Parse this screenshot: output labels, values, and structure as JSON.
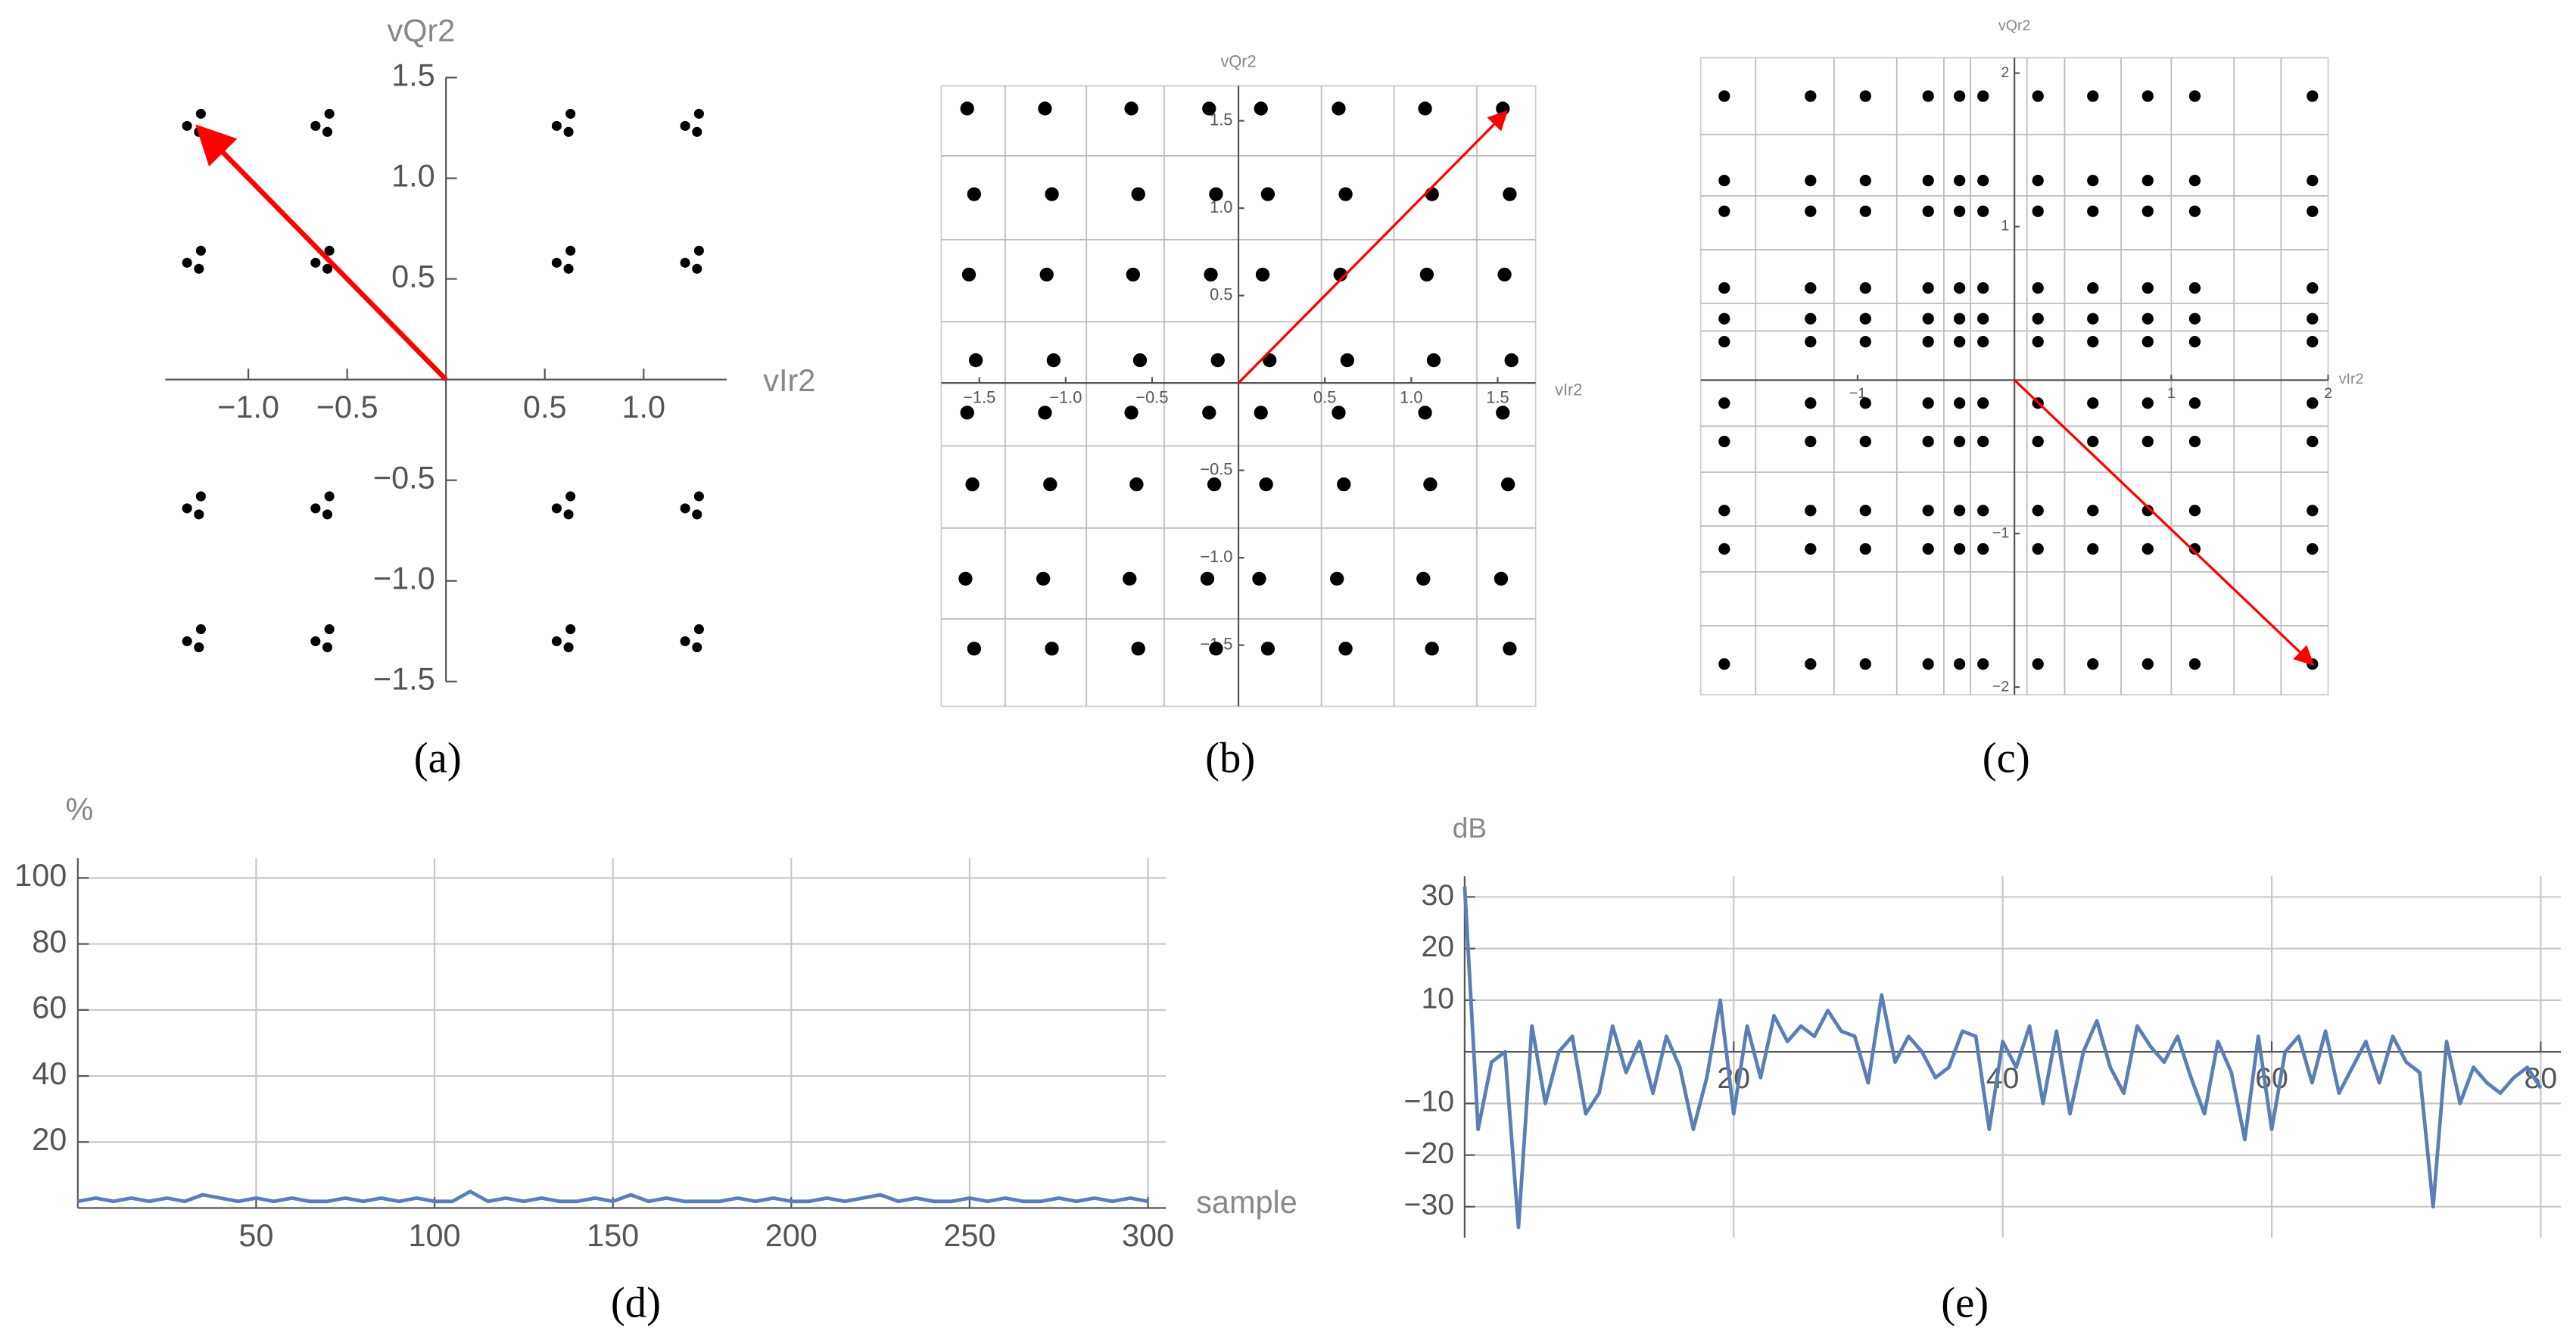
{
  "chart_data": [
    {
      "type": "scatter",
      "caption": "(a)",
      "xlabel": "vIr2",
      "ylabel": "vQr2",
      "color": "#000000",
      "xlim": [
        -1.42,
        1.42
      ],
      "ylim": [
        -1.5,
        1.5
      ],
      "xticks": [
        {
          "value": -1,
          "label": "−1.0"
        },
        {
          "value": -0.5,
          "label": "−0.5"
        },
        0.5,
        {
          "value": 1,
          "label": "1.0"
        }
      ],
      "yticks": [
        {
          "value": -1.5,
          "label": "−1.5"
        },
        {
          "value": -1,
          "label": "−1.0"
        },
        {
          "value": -0.5,
          "label": "−0.5"
        },
        0.5,
        {
          "value": 1,
          "label": "1.0"
        },
        1.5
      ],
      "grid": false,
      "x": [
        -1.24,
        -1.31,
        -1.25,
        -1.24,
        -1.31,
        -1.25,
        -1.24,
        -1.31,
        -1.25,
        -1.24,
        -1.31,
        -1.25,
        -0.59,
        -0.66,
        -0.6,
        -0.59,
        -0.66,
        -0.6,
        -0.59,
        -0.66,
        -0.6,
        -0.59,
        -0.66,
        -0.6,
        0.63,
        0.56,
        0.62,
        0.63,
        0.56,
        0.62,
        0.63,
        0.56,
        0.62,
        0.63,
        0.56,
        0.62,
        1.28,
        1.21,
        1.27,
        1.28,
        1.21,
        1.27,
        1.28,
        1.21,
        1.27,
        1.28,
        1.21,
        1.27
      ],
      "y": [
        1.32,
        1.26,
        1.23,
        0.64,
        0.58,
        0.55,
        -0.58,
        -0.64,
        -0.67,
        -1.24,
        -1.3,
        -1.33,
        1.32,
        1.26,
        1.23,
        0.64,
        0.58,
        0.55,
        -0.58,
        -0.64,
        -0.67,
        -1.24,
        -1.3,
        -1.33,
        1.32,
        1.26,
        1.23,
        0.64,
        0.58,
        0.55,
        -0.58,
        -0.64,
        -0.67,
        -1.24,
        -1.3,
        -1.33,
        1.32,
        1.26,
        1.23,
        0.64,
        0.58,
        0.55,
        -0.58,
        -0.64,
        -0.67,
        -1.24,
        -1.3,
        -1.33
      ],
      "arrow": {
        "x": [
          0,
          -1.25
        ],
        "y": [
          0,
          1.25
        ],
        "color": "#ff0000"
      }
    },
    {
      "type": "scatter",
      "caption": "(b)",
      "xlabel": "vIr2",
      "ylabel": "vQr2",
      "color": "#000000",
      "xlim": [
        -1.72,
        1.72
      ],
      "ylim": [
        -1.85,
        1.7
      ],
      "xticks": [
        {
          "value": -1.5,
          "label": "−1.5"
        },
        {
          "value": -1,
          "label": "−1.0"
        },
        {
          "value": -0.5,
          "label": "−0.5"
        },
        0.5,
        {
          "value": 1,
          "label": "1.0"
        },
        1.5
      ],
      "yticks": [
        {
          "value": -1.5,
          "label": "−1.5"
        },
        {
          "value": -1,
          "label": "−1.0"
        },
        {
          "value": -0.5,
          "label": "−0.5"
        },
        0.5,
        {
          "value": 1,
          "label": "1.0"
        },
        1.5
      ],
      "grid_x": [
        -1.35,
        -0.88,
        -0.43,
        0.48,
        0.9,
        1.38
      ],
      "grid_y": [
        -1.35,
        -0.83,
        -0.36,
        0.35,
        0.82,
        1.3
      ],
      "x": [
        -1.53,
        -1.58,
        -1.54,
        -1.57,
        -1.52,
        -1.56,
        -1.53,
        -1.57,
        -1.08,
        -1.13,
        -1.09,
        -1.12,
        -1.07,
        -1.11,
        -1.08,
        -1.12,
        -0.58,
        -0.63,
        -0.59,
        -0.62,
        -0.57,
        -0.61,
        -0.58,
        -0.62,
        -0.13,
        -0.18,
        -0.14,
        -0.17,
        -0.12,
        -0.16,
        -0.13,
        -0.17,
        0.17,
        0.12,
        0.16,
        0.13,
        0.18,
        0.14,
        0.17,
        0.13,
        0.62,
        0.57,
        0.61,
        0.58,
        0.63,
        0.59,
        0.62,
        0.58,
        1.12,
        1.07,
        1.11,
        1.08,
        1.13,
        1.09,
        1.12,
        1.08,
        1.57,
        1.52,
        1.56,
        1.53,
        1.58,
        1.54,
        1.57,
        1.53
      ],
      "y": [
        -1.52,
        -1.12,
        -0.58,
        -0.17,
        0.13,
        0.62,
        1.08,
        1.57,
        -1.52,
        -1.12,
        -0.58,
        -0.17,
        0.13,
        0.62,
        1.08,
        1.57,
        -1.52,
        -1.12,
        -0.58,
        -0.17,
        0.13,
        0.62,
        1.08,
        1.57,
        -1.52,
        -1.12,
        -0.58,
        -0.17,
        0.13,
        0.62,
        1.08,
        1.57,
        -1.52,
        -1.12,
        -0.58,
        -0.17,
        0.13,
        0.62,
        1.08,
        1.57,
        -1.52,
        -1.12,
        -0.58,
        -0.17,
        0.13,
        0.62,
        1.08,
        1.57,
        -1.52,
        -1.12,
        -0.58,
        -0.17,
        0.13,
        0.62,
        1.08,
        1.57,
        -1.52,
        -1.12,
        -0.58,
        -0.17,
        0.13,
        0.62,
        1.08,
        1.57
      ],
      "arrow": {
        "x": [
          0,
          1.55
        ],
        "y": [
          0,
          1.55
        ],
        "color": "#ff0000"
      }
    },
    {
      "type": "scatter",
      "caption": "(c)",
      "xlabel": "vIr2",
      "ylabel": "vQr2",
      "color": "#000000",
      "xlim": [
        -2,
        2
      ],
      "ylim": [
        -2.05,
        2.1
      ],
      "xticks": [
        {
          "value": -1,
          "label": "−1"
        },
        1,
        2
      ],
      "yticks": [
        {
          "value": -2,
          "label": "−2"
        },
        {
          "value": -1,
          "label": "−1"
        },
        1,
        2
      ],
      "grid_x": [
        -1.65,
        -1.15,
        -0.75,
        -0.45,
        -0.28,
        0.08,
        0.32,
        0.68,
        1.0,
        1.4,
        1.7
      ],
      "grid_y": [
        -1.6,
        -1.25,
        -0.95,
        -0.6,
        -0.3,
        0.32,
        0.5,
        0.85,
        1.2,
        1.6
      ],
      "x": [
        -1.85,
        -1.85,
        -1.85,
        -1.85,
        -1.85,
        -1.85,
        -1.85,
        -1.85,
        -1.85,
        -1.85,
        -1.85,
        -1.3,
        -1.3,
        -1.3,
        -1.3,
        -1.3,
        -1.3,
        -1.3,
        -1.3,
        -1.3,
        -1.3,
        -1.3,
        -0.95,
        -0.95,
        -0.95,
        -0.95,
        -0.95,
        -0.95,
        -0.95,
        -0.95,
        -0.95,
        -0.95,
        -0.95,
        -0.55,
        -0.55,
        -0.55,
        -0.55,
        -0.55,
        -0.55,
        -0.55,
        -0.55,
        -0.55,
        -0.55,
        -0.55,
        -0.35,
        -0.35,
        -0.35,
        -0.35,
        -0.35,
        -0.35,
        -0.35,
        -0.35,
        -0.35,
        -0.35,
        -0.35,
        -0.2,
        -0.2,
        -0.2,
        -0.2,
        -0.2,
        -0.2,
        -0.2,
        -0.2,
        -0.2,
        -0.2,
        -0.2,
        0.15,
        0.15,
        0.15,
        0.15,
        0.15,
        0.15,
        0.15,
        0.15,
        0.15,
        0.15,
        0.15,
        0.5,
        0.5,
        0.5,
        0.5,
        0.5,
        0.5,
        0.5,
        0.5,
        0.5,
        0.5,
        0.5,
        0.85,
        0.85,
        0.85,
        0.85,
        0.85,
        0.85,
        0.85,
        0.85,
        0.85,
        0.85,
        0.85,
        1.15,
        1.15,
        1.15,
        1.15,
        1.15,
        1.15,
        1.15,
        1.15,
        1.15,
        1.15,
        1.15,
        1.9,
        1.9,
        1.9,
        1.9,
        1.9,
        1.9,
        1.9,
        1.9,
        1.9,
        1.9,
        1.9
      ],
      "y": [
        1.85,
        1.3,
        1.1,
        0.6,
        0.4,
        0.25,
        -0.15,
        -0.4,
        -0.85,
        -1.1,
        -1.85,
        1.85,
        1.3,
        1.1,
        0.6,
        0.4,
        0.25,
        -0.15,
        -0.4,
        -0.85,
        -1.1,
        -1.85,
        1.85,
        1.3,
        1.1,
        0.6,
        0.4,
        0.25,
        -0.15,
        -0.4,
        -0.85,
        -1.1,
        -1.85,
        1.85,
        1.3,
        1.1,
        0.6,
        0.4,
        0.25,
        -0.15,
        -0.4,
        -0.85,
        -1.1,
        -1.85,
        1.85,
        1.3,
        1.1,
        0.6,
        0.4,
        0.25,
        -0.15,
        -0.4,
        -0.85,
        -1.1,
        -1.85,
        1.85,
        1.3,
        1.1,
        0.6,
        0.4,
        0.25,
        -0.15,
        -0.4,
        -0.85,
        -1.1,
        -1.85,
        1.85,
        1.3,
        1.1,
        0.6,
        0.4,
        0.25,
        -0.15,
        -0.4,
        -0.85,
        -1.1,
        -1.85,
        1.85,
        1.3,
        1.1,
        0.6,
        0.4,
        0.25,
        -0.15,
        -0.4,
        -0.85,
        -1.1,
        -1.85,
        1.85,
        1.3,
        1.1,
        0.6,
        0.4,
        0.25,
        -0.15,
        -0.4,
        -0.85,
        -1.1,
        -1.85,
        1.85,
        1.3,
        1.1,
        0.6,
        0.4,
        0.25,
        -0.15,
        -0.4,
        -0.85,
        -1.1,
        -1.85,
        1.85,
        1.3,
        1.1,
        0.6,
        0.4,
        0.25,
        -0.15,
        -0.4,
        -0.85,
        -1.1,
        -1.85
      ],
      "arrow": {
        "x": [
          0,
          1.9
        ],
        "y": [
          0,
          -1.85
        ],
        "color": "#ff0000"
      }
    },
    {
      "type": "line",
      "caption": "(d)",
      "xlabel": "sample",
      "ylabel": "%",
      "color": "#5b7fb5",
      "xlim": [
        0,
        305
      ],
      "ylim": [
        0,
        106
      ],
      "xticks": [
        50,
        100,
        150,
        200,
        250,
        300
      ],
      "yticks": [
        20,
        40,
        60,
        80,
        100
      ],
      "grid": true,
      "x": [
        0,
        5,
        10,
        15,
        20,
        25,
        30,
        35,
        40,
        45,
        50,
        55,
        60,
        65,
        70,
        75,
        80,
        85,
        90,
        95,
        100,
        105,
        110,
        115,
        120,
        125,
        130,
        135,
        140,
        145,
        150,
        155,
        160,
        165,
        170,
        175,
        180,
        185,
        190,
        195,
        200,
        205,
        210,
        215,
        220,
        225,
        230,
        235,
        240,
        245,
        250,
        255,
        260,
        265,
        270,
        275,
        280,
        285,
        290,
        295,
        300
      ],
      "values": [
        2,
        3,
        2,
        3,
        2,
        3,
        2,
        4,
        3,
        2,
        3,
        2,
        3,
        2,
        2,
        3,
        2,
        3,
        2,
        3,
        2,
        2,
        5,
        2,
        3,
        2,
        3,
        2,
        2,
        3,
        2,
        4,
        2,
        3,
        2,
        2,
        2,
        3,
        2,
        3,
        2,
        2,
        3,
        2,
        3,
        4,
        2,
        3,
        2,
        2,
        3,
        2,
        3,
        2,
        2,
        3,
        2,
        3,
        2,
        3,
        2
      ]
    },
    {
      "type": "line",
      "caption": "(e)",
      "ylabel": "dB",
      "color": "#5b7fb5",
      "xlim": [
        0,
        81.5
      ],
      "ylim": [
        -36,
        34
      ],
      "xticks": [
        20,
        40,
        60,
        80
      ],
      "yticks": [
        {
          "value": -30,
          "label": "−30"
        },
        {
          "value": -20,
          "label": "−20"
        },
        {
          "value": -10,
          "label": "−10"
        },
        10,
        20,
        30
      ],
      "grid": true,
      "x": [
        0,
        1,
        2,
        3,
        4,
        5,
        6,
        7,
        8,
        9,
        10,
        11,
        12,
        13,
        14,
        15,
        16,
        17,
        18,
        19,
        20,
        21,
        22,
        23,
        24,
        25,
        26,
        27,
        28,
        29,
        30,
        31,
        32,
        33,
        34,
        35,
        36,
        37,
        38,
        39,
        40,
        41,
        42,
        43,
        44,
        45,
        46,
        47,
        48,
        49,
        50,
        51,
        52,
        53,
        54,
        55,
        56,
        57,
        58,
        59,
        60,
        61,
        62,
        63,
        64,
        65,
        66,
        67,
        68,
        69,
        70,
        71,
        72,
        73,
        74,
        75,
        76,
        77,
        78,
        79,
        80
      ],
      "values": [
        32,
        -15,
        -2,
        0,
        -34,
        5,
        -10,
        0,
        3,
        -12,
        -8,
        5,
        -4,
        2,
        -8,
        3,
        -3,
        -15,
        -5,
        10,
        -12,
        5,
        -5,
        7,
        2,
        5,
        3,
        8,
        4,
        3,
        -6,
        11,
        -2,
        3,
        0,
        -5,
        -3,
        4,
        3,
        -15,
        2,
        -3,
        5,
        -10,
        4,
        -12,
        0,
        6,
        -3,
        -8,
        5,
        1,
        -2,
        3,
        -5,
        -12,
        2,
        -4,
        -17,
        3,
        -15,
        0,
        3,
        -6,
        4,
        -8,
        -3,
        2,
        -6,
        3,
        -2,
        -4,
        -30,
        2,
        -10,
        -3,
        -6,
        -8,
        -5,
        -3,
        -7
      ]
    }
  ]
}
